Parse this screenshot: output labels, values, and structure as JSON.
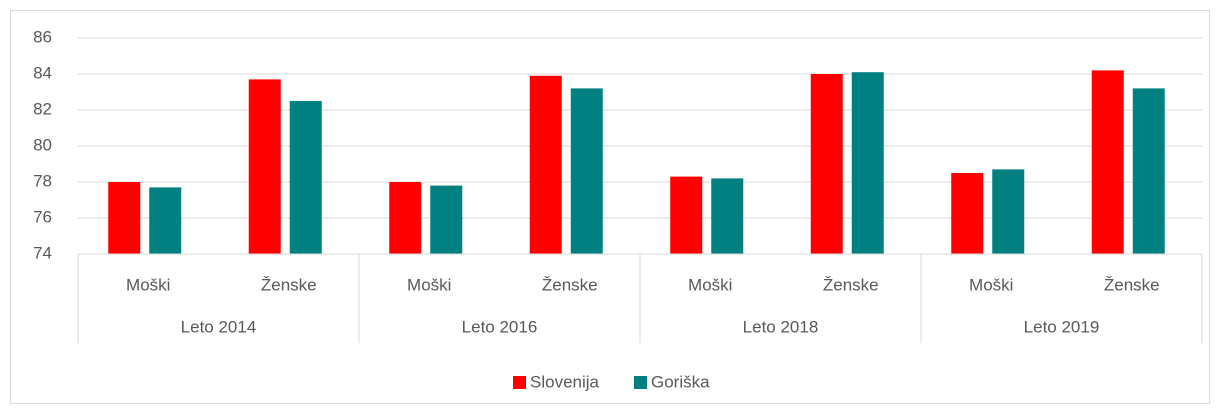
{
  "chart_data": {
    "type": "bar",
    "categories": [
      "Moški",
      "Ženske",
      "Moški",
      "Ženske",
      "Moški",
      "Ženske",
      "Moški",
      "Ženske"
    ],
    "groups": [
      "Leto 2014",
      "Leto 2016",
      "Leto 2018",
      "Leto 2019"
    ],
    "series": [
      {
        "name": "Slovenija",
        "color": "#ff0000",
        "values": [
          78.0,
          83.7,
          78.0,
          83.9,
          78.3,
          84.0,
          78.5,
          84.2
        ]
      },
      {
        "name": "Goriška",
        "color": "#008080",
        "values": [
          77.7,
          82.5,
          77.8,
          83.2,
          78.2,
          84.1,
          78.7,
          83.2
        ]
      }
    ],
    "ylim": [
      74,
      86
    ],
    "yticks": [
      74,
      76,
      78,
      80,
      82,
      84,
      86
    ],
    "grid": true,
    "legend": "bottom"
  }
}
